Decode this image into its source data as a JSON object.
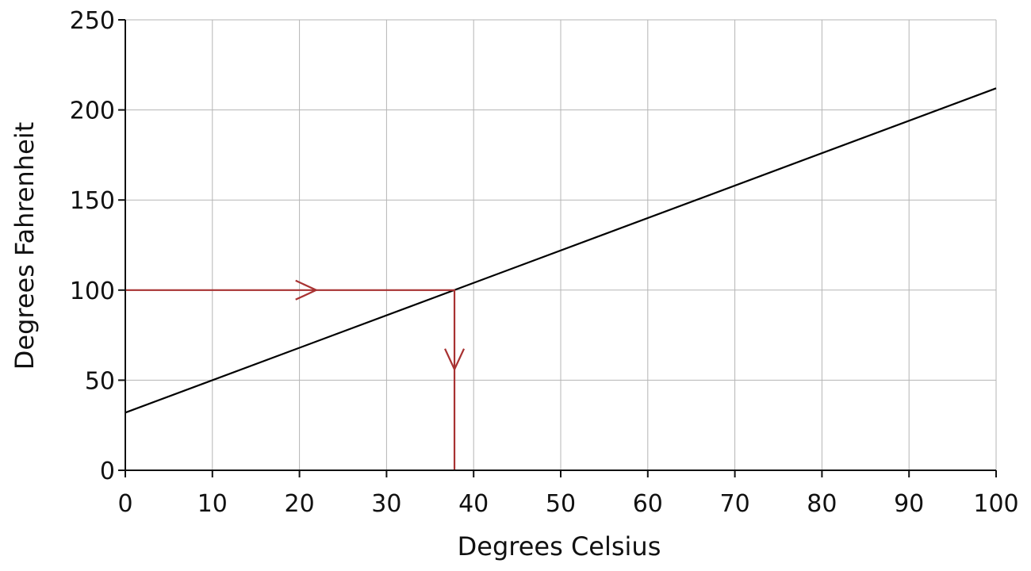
{
  "chart_data": {
    "type": "line",
    "title": "",
    "xlabel": "Degrees Celsius",
    "ylabel": "Degrees Fahrenheit",
    "xlim": [
      0,
      100
    ],
    "ylim": [
      0,
      250
    ],
    "x_ticks": [
      0,
      10,
      20,
      30,
      40,
      50,
      60,
      70,
      80,
      90,
      100
    ],
    "y_ticks": [
      0,
      50,
      100,
      150,
      200,
      250
    ],
    "grid": true,
    "legend": "none",
    "series": [
      {
        "x": [
          0,
          100
        ],
        "y": [
          32,
          212
        ],
        "color": "#000000"
      }
    ],
    "annotations": [
      {
        "type": "arrow-path",
        "color": "#a83232",
        "from": [
          0,
          100
        ],
        "via": [
          37.8,
          100
        ],
        "to": [
          37.8,
          0
        ]
      }
    ]
  }
}
